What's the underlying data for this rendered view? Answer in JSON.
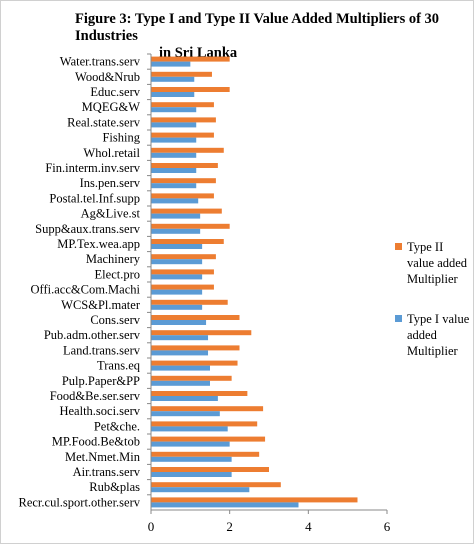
{
  "chart_data": {
    "type": "bar",
    "orientation": "horizontal",
    "title_line1": "Figure 3: Type I and Type II Value Added Multipliers of 30 Industries",
    "title_line2": "in Sri Lanka",
    "categories": [
      "Water.trans.serv",
      "Wood&Nrub",
      "Educ.serv",
      "MQEG&W",
      "Real.state.serv",
      "Fishing",
      "Whol.retail",
      "Fin.interm.inv.serv",
      "Ins.pen.serv",
      "Postal.tel.Inf.supp",
      "Ag&Live.st",
      "Supp&aux.trans.serv",
      "MP.Tex.wea.app",
      "Machinery",
      "Elect.pro",
      "Offi.acc&Com.Machi",
      "WCS&Pl.mater",
      "Cons.serv",
      "Pub.adm.other.serv",
      "Land.trans.serv",
      "Trans.eq",
      "Pulp.Paper&PP",
      "Food&Be.ser.serv",
      "Health.soci.serv",
      "Pet&che.",
      "MP.Food.Be&tob",
      "Met.Nmet.Min",
      "Air.trans.serv",
      "Rub&plas",
      "Recr.cul.sport.other.serv"
    ],
    "series": [
      {
        "name": "Type II value added Multiplier",
        "color": "#ED7D31",
        "values": [
          2.0,
          1.55,
          2.0,
          1.6,
          1.65,
          1.6,
          1.85,
          1.7,
          1.65,
          1.6,
          1.8,
          2.0,
          1.85,
          1.65,
          1.6,
          1.6,
          1.95,
          2.25,
          2.55,
          2.25,
          2.2,
          2.05,
          2.45,
          2.85,
          2.7,
          2.9,
          2.75,
          3.0,
          3.3,
          5.25
        ]
      },
      {
        "name": "Type I value added Multiplier",
        "color": "#5B9BD5",
        "values": [
          1.0,
          1.1,
          1.1,
          1.15,
          1.15,
          1.15,
          1.15,
          1.15,
          1.15,
          1.2,
          1.25,
          1.25,
          1.3,
          1.3,
          1.3,
          1.3,
          1.3,
          1.4,
          1.45,
          1.45,
          1.5,
          1.5,
          1.7,
          1.75,
          1.95,
          2.0,
          2.05,
          2.05,
          2.5,
          3.75
        ]
      }
    ],
    "xlim": [
      0,
      6
    ],
    "xticks": [
      0,
      2,
      4,
      6
    ],
    "legend_position": "right",
    "grid": false
  }
}
